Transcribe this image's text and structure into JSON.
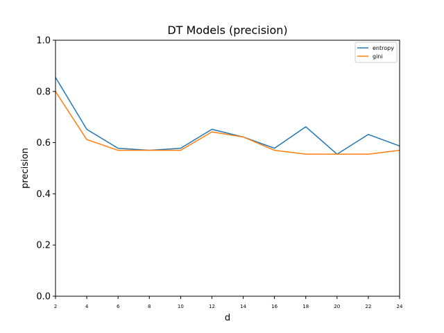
{
  "chart_data": {
    "type": "line",
    "title": "DT Models (precision)",
    "xlabel": "d",
    "ylabel": "precision",
    "x": [
      2,
      4,
      6,
      8,
      10,
      12,
      14,
      16,
      18,
      20,
      22,
      24
    ],
    "xlim": [
      2,
      24
    ],
    "ylim": [
      0.0,
      1.0
    ],
    "yticks": [
      "0.0",
      "0.2",
      "0.4",
      "0.6",
      "0.8",
      "1.0"
    ],
    "xticks": [
      "2",
      "4",
      "6",
      "8",
      "10",
      "12",
      "14",
      "16",
      "18",
      "20",
      "22",
      "24"
    ],
    "grid": false,
    "legend_position": "top-right",
    "series": [
      {
        "name": "entropy",
        "color": "#1f77b4",
        "values": [
          0.855,
          0.652,
          0.578,
          0.57,
          0.578,
          0.652,
          0.622,
          0.578,
          0.662,
          0.555,
          0.632,
          0.587
        ]
      },
      {
        "name": "gini",
        "color": "#ff7f0e",
        "values": [
          0.8,
          0.612,
          0.57,
          0.57,
          0.57,
          0.642,
          0.622,
          0.57,
          0.555,
          0.555,
          0.555,
          0.57
        ]
      }
    ]
  }
}
